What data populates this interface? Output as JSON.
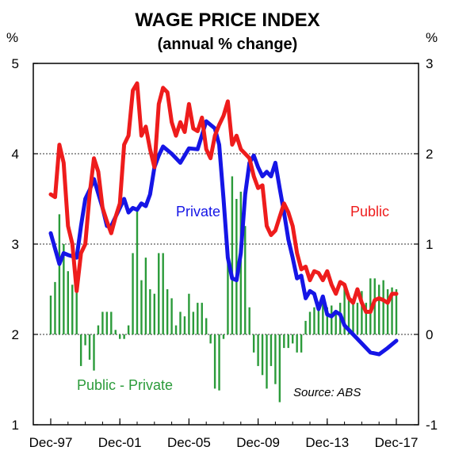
{
  "chart_data": {
    "type": "line",
    "title": "WAGE PRICE INDEX",
    "subtitle": "(annual % change)",
    "left_unit": "%",
    "right_unit": "%",
    "source": "Source: ABS",
    "left_axis": {
      "min": 1,
      "max": 5,
      "ticks": [
        "1",
        "2",
        "3",
        "4",
        "5"
      ]
    },
    "right_axis": {
      "min": -1,
      "max": 3,
      "ticks": [
        "-1",
        "0",
        "1",
        "2",
        "3"
      ]
    },
    "x_axis": {
      "min": 1997.95,
      "max": 2018.0,
      "tick_positions": [
        1997.95,
        2001.95,
        2005.95,
        2009.95,
        2013.95,
        2017.95
      ],
      "tick_labels": [
        "Dec-97",
        "Dec-01",
        "Dec-05",
        "Dec-09",
        "Dec-13",
        "Dec-17"
      ]
    },
    "grid_lines_at_left": [
      2,
      3,
      4
    ],
    "series": [
      {
        "name": "Private",
        "color": "#1515e6",
        "axis": "left",
        "x": [
          1997.95,
          1998.45,
          1998.7,
          1998.95,
          1999.45,
          1999.7,
          1999.95,
          2000.2,
          2000.45,
          2000.95,
          2001.2,
          2001.45,
          2001.95,
          2002.2,
          2002.45,
          2002.7,
          2002.95,
          2003.2,
          2003.45,
          2003.7,
          2003.95,
          2004.2,
          2004.45,
          2004.95,
          2005.45,
          2005.95,
          2006.45,
          2006.95,
          2007.2,
          2007.45,
          2007.7,
          2007.95,
          2008.2,
          2008.45,
          2008.7,
          2008.95,
          2009.2,
          2009.45,
          2009.7,
          2009.95,
          2010.2,
          2010.45,
          2010.7,
          2010.95,
          2011.2,
          2011.45,
          2011.7,
          2011.95,
          2012.2,
          2012.45,
          2012.7,
          2012.95,
          2013.2,
          2013.45,
          2013.7,
          2013.95,
          2014.2,
          2014.45,
          2014.7,
          2014.95,
          2015.45,
          2015.95,
          2016.45,
          2016.95,
          2017.45,
          2017.95
        ],
        "y": [
          3.12,
          2.78,
          2.9,
          2.88,
          2.85,
          3.2,
          3.5,
          3.6,
          3.72,
          3.4,
          3.2,
          3.2,
          3.4,
          3.5,
          3.35,
          3.4,
          3.38,
          3.45,
          3.42,
          3.55,
          3.85,
          3.98,
          4.08,
          4.0,
          3.9,
          4.06,
          4.05,
          4.36,
          4.32,
          4.28,
          4.1,
          3.5,
          2.85,
          2.62,
          2.6,
          2.9,
          3.55,
          3.9,
          3.98,
          3.85,
          3.75,
          3.8,
          3.75,
          3.9,
          3.62,
          3.35,
          3.05,
          2.85,
          2.62,
          2.65,
          2.4,
          2.48,
          2.45,
          2.28,
          2.42,
          2.22,
          2.2,
          2.25,
          2.22,
          2.1,
          2.0,
          1.9,
          1.8,
          1.78,
          1.85,
          1.93
        ]
      },
      {
        "name": "Public",
        "color": "#ee1c1c",
        "axis": "left",
        "x": [
          1997.95,
          1998.2,
          1998.45,
          1998.7,
          1998.95,
          1999.2,
          1999.45,
          1999.7,
          1999.95,
          2000.2,
          2000.45,
          2000.7,
          2000.95,
          2001.2,
          2001.45,
          2001.7,
          2001.95,
          2002.2,
          2002.45,
          2002.7,
          2002.95,
          2003.2,
          2003.45,
          2003.7,
          2003.95,
          2004.2,
          2004.45,
          2004.7,
          2004.95,
          2005.2,
          2005.45,
          2005.7,
          2005.95,
          2006.2,
          2006.45,
          2006.7,
          2006.95,
          2007.2,
          2007.45,
          2007.7,
          2007.95,
          2008.2,
          2008.45,
          2008.7,
          2008.95,
          2009.2,
          2009.45,
          2009.7,
          2009.95,
          2010.2,
          2010.45,
          2010.7,
          2010.95,
          2011.2,
          2011.45,
          2011.7,
          2011.95,
          2012.2,
          2012.45,
          2012.7,
          2012.95,
          2013.2,
          2013.45,
          2013.7,
          2013.95,
          2014.2,
          2014.45,
          2014.7,
          2014.95,
          2015.2,
          2015.45,
          2015.7,
          2015.95,
          2016.2,
          2016.45,
          2016.7,
          2016.95,
          2017.2,
          2017.45,
          2017.7,
          2017.95
        ],
        "y": [
          3.55,
          3.52,
          4.1,
          3.9,
          3.2,
          3.0,
          2.48,
          2.9,
          3.0,
          3.55,
          3.95,
          3.8,
          3.4,
          3.25,
          3.12,
          3.3,
          3.45,
          4.1,
          4.2,
          4.7,
          4.78,
          4.2,
          4.3,
          4.05,
          3.85,
          4.55,
          4.73,
          4.68,
          4.35,
          4.2,
          4.35,
          4.24,
          4.55,
          4.28,
          4.25,
          4.4,
          4.05,
          3.95,
          4.2,
          4.32,
          4.42,
          4.58,
          4.1,
          4.2,
          4.05,
          4.0,
          3.95,
          3.75,
          3.62,
          3.65,
          3.2,
          3.1,
          3.15,
          3.3,
          3.45,
          3.35,
          3.2,
          2.9,
          2.72,
          2.75,
          2.6,
          2.7,
          2.68,
          2.6,
          2.7,
          2.55,
          2.45,
          2.58,
          2.55,
          2.4,
          2.35,
          2.5,
          2.35,
          2.25,
          2.25,
          2.38,
          2.4,
          2.38,
          2.35,
          2.45,
          2.45
        ]
      },
      {
        "name": "Public - Private",
        "color": "#2b9b3a",
        "axis": "right",
        "type": "bar",
        "x": [
          1997.95,
          1998.2,
          1998.45,
          1998.7,
          1998.95,
          1999.2,
          1999.45,
          1999.7,
          1999.95,
          2000.2,
          2000.45,
          2000.7,
          2000.95,
          2001.2,
          2001.45,
          2001.7,
          2001.95,
          2002.2,
          2002.45,
          2002.7,
          2002.95,
          2003.2,
          2003.45,
          2003.7,
          2003.95,
          2004.2,
          2004.45,
          2004.7,
          2004.95,
          2005.2,
          2005.45,
          2005.7,
          2005.95,
          2006.2,
          2006.45,
          2006.7,
          2006.95,
          2007.2,
          2007.45,
          2007.7,
          2007.95,
          2008.2,
          2008.45,
          2008.7,
          2008.95,
          2009.2,
          2009.45,
          2009.7,
          2009.95,
          2010.2,
          2010.45,
          2010.7,
          2010.95,
          2011.2,
          2011.45,
          2011.7,
          2011.95,
          2012.2,
          2012.45,
          2012.7,
          2012.95,
          2013.2,
          2013.45,
          2013.7,
          2013.95,
          2014.2,
          2014.45,
          2014.7,
          2014.95,
          2015.2,
          2015.45,
          2015.7,
          2015.95,
          2016.2,
          2016.45,
          2016.7,
          2016.95,
          2017.2,
          2017.45,
          2017.7,
          2017.95
        ],
        "y": [
          0.43,
          0.58,
          1.33,
          1.0,
          0.7,
          0.55,
          0.55,
          -0.35,
          -0.12,
          -0.28,
          -0.4,
          0.1,
          0.25,
          0.25,
          0.25,
          0.05,
          -0.05,
          -0.05,
          0.1,
          0.9,
          1.4,
          0.6,
          0.85,
          0.5,
          0.45,
          0.9,
          0.9,
          0.5,
          0.4,
          0.1,
          0.25,
          0.2,
          0.45,
          0.25,
          0.35,
          0.35,
          0.18,
          -0.1,
          -0.6,
          -0.62,
          -0.05,
          0.98,
          1.75,
          1.5,
          1.58,
          1.2,
          0.3,
          -0.2,
          -0.35,
          -0.45,
          -0.6,
          -0.35,
          -0.55,
          -0.75,
          -0.15,
          -0.15,
          -0.1,
          -0.2,
          -0.2,
          0.15,
          0.25,
          0.3,
          0.3,
          0.35,
          0.3,
          0.32,
          0.25,
          0.35,
          0.55,
          0.42,
          0.35,
          0.35,
          0.48,
          0.35,
          0.62,
          0.62,
          0.55,
          0.6,
          0.5,
          0.52,
          0.5
        ]
      }
    ],
    "labels": {
      "private": "Private",
      "public": "Public",
      "diff": "Public - Private"
    }
  }
}
